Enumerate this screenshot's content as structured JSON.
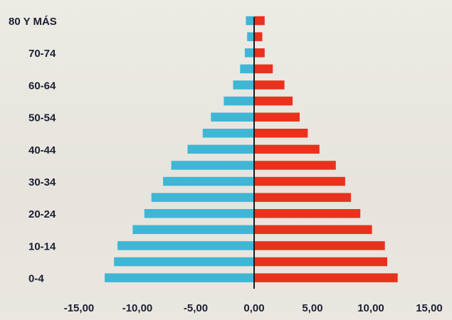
{
  "chart_data": {
    "type": "bar",
    "orientation": "horizontal",
    "subtype": "population-pyramid",
    "categories": [
      "0-4",
      "5-9",
      "10-14",
      "15-19",
      "20-24",
      "25-29",
      "30-34",
      "35-39",
      "40-44",
      "45-49",
      "50-54",
      "55-59",
      "60-64",
      "65-69",
      "70-74",
      "75-79",
      "80 Y MÁS"
    ],
    "category_labels_shown": [
      "80 Y MÁS",
      "70-74",
      "60-64",
      "50-54",
      "40-44",
      "30-34",
      "20-24",
      "10-14",
      "0-4"
    ],
    "series": [
      {
        "color": "#3fb6d4",
        "values": [
          -12.8,
          -12.0,
          -11.7,
          -10.4,
          -9.4,
          -8.8,
          -7.8,
          -7.1,
          -5.7,
          -4.4,
          -3.7,
          -2.6,
          -1.8,
          -1.2,
          -0.8,
          -0.6,
          -0.7
        ]
      },
      {
        "color": "#e8321e",
        "values": [
          12.3,
          11.4,
          11.2,
          10.1,
          9.1,
          8.3,
          7.8,
          7.0,
          5.6,
          4.6,
          3.9,
          3.3,
          2.6,
          1.6,
          0.9,
          0.7,
          0.9
        ]
      }
    ],
    "xlim": [
      -15,
      15
    ],
    "xticks": [
      -15,
      -10,
      -5,
      0,
      5,
      10,
      15
    ],
    "xtick_labels": [
      "-15,00",
      "-10,00",
      "-5,00",
      "0,00",
      "5,00",
      "10,00",
      "15,00"
    ],
    "title": "",
    "xlabel": "",
    "ylabel": "",
    "grid": false,
    "legend": false
  }
}
